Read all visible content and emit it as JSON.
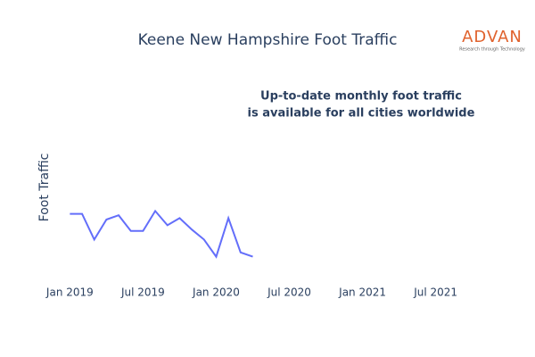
{
  "chart_data": {
    "type": "line",
    "title": "Keene New Hampshire Foot Traffic",
    "y_label": "Foot Traffic",
    "annotation": [
      "Up-to-date monthly foot traffic",
      "is available for all cities worldwide"
    ],
    "logo": {
      "name": "ADVAN",
      "tagline": "Research through Technology"
    },
    "x": [
      "2019-01",
      "2019-02",
      "2019-03",
      "2019-04",
      "2019-05",
      "2019-06",
      "2019-07",
      "2019-08",
      "2019-09",
      "2019-10",
      "2019-11",
      "2019-12",
      "2020-01",
      "2020-02",
      "2020-03",
      "2020-04"
    ],
    "series": [
      {
        "name": "Foot Traffic",
        "color": "#636efa",
        "values": [
          44,
          44,
          26,
          40,
          43,
          32,
          32,
          46,
          36,
          41,
          33,
          26,
          14,
          41,
          17,
          14
        ]
      }
    ],
    "xlim": [
      "2018-11",
      "2021-09"
    ],
    "xticks": [
      {
        "value": "2019-01",
        "label": "Jan 2019"
      },
      {
        "value": "2019-07",
        "label": "Jul 2019"
      },
      {
        "value": "2020-01",
        "label": "Jan 2020"
      },
      {
        "value": "2020-07",
        "label": "Jul 2020"
      },
      {
        "value": "2021-01",
        "label": "Jan 2021"
      },
      {
        "value": "2021-07",
        "label": "Jul 2021"
      }
    ],
    "ylim": [
      0,
      100
    ],
    "grid": false
  }
}
